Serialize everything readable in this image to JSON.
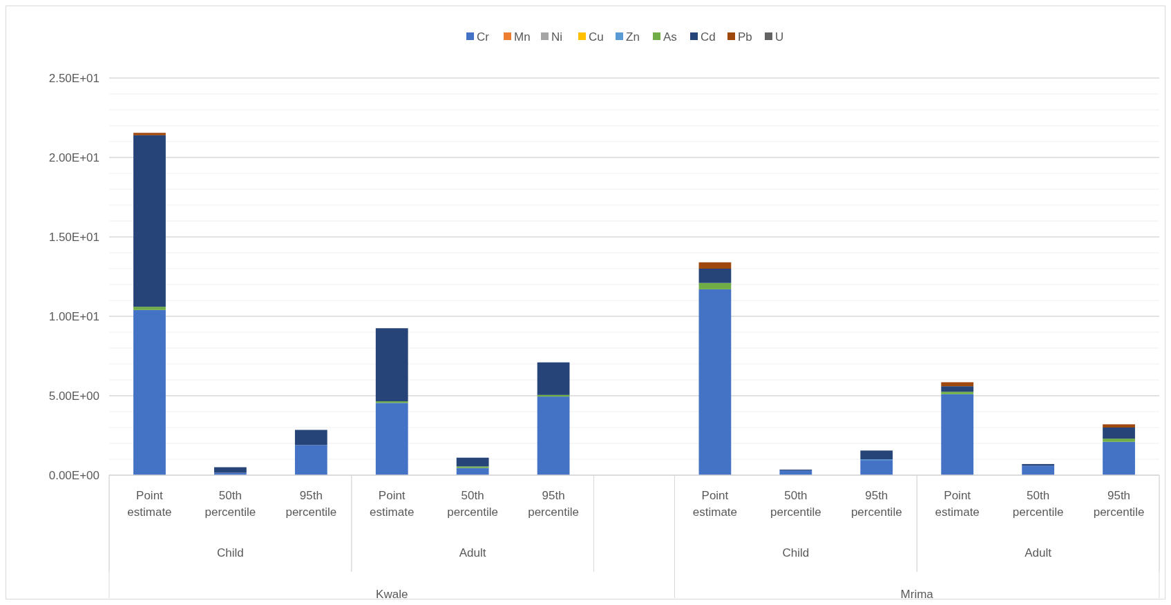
{
  "chart_data": {
    "type": "bar",
    "stacked": true,
    "legend": "top",
    "grid": "y",
    "categories": [
      "Point estimate",
      "50th percentile",
      "95th percentile",
      "Point estimate",
      "50th percentile",
      "95th percentile",
      null,
      "Point estimate",
      "50th percentile",
      "95th percentile",
      "Point estimate",
      "50th percentile",
      "95th percentile"
    ],
    "annotations": [
      "Child",
      "Adult",
      "Child",
      "Adult",
      "Kwale",
      "Mrima"
    ],
    "ylim": [
      0,
      25
    ],
    "yticks": [
      {
        "value": 0,
        "label": "0.00E+00"
      },
      {
        "value": 1,
        "label": null
      },
      {
        "value": 2,
        "label": null
      },
      {
        "value": 3,
        "label": null
      },
      {
        "value": 4,
        "label": null
      },
      {
        "value": 5,
        "label": "5.00E+00"
      },
      {
        "value": 6,
        "label": null
      },
      {
        "value": 7,
        "label": null
      },
      {
        "value": 8,
        "label": null
      },
      {
        "value": 9,
        "label": null
      },
      {
        "value": 10,
        "label": "1.00E+01"
      },
      {
        "value": 11,
        "label": null
      },
      {
        "value": 12,
        "label": null
      },
      {
        "value": 13,
        "label": null
      },
      {
        "value": 14,
        "label": null
      },
      {
        "value": 15,
        "label": "1.50E+01"
      },
      {
        "value": 16,
        "label": null
      },
      {
        "value": 17,
        "label": null
      },
      {
        "value": 18,
        "label": null
      },
      {
        "value": 19,
        "label": null
      },
      {
        "value": 20,
        "label": "2.00E+01"
      },
      {
        "value": 21,
        "label": null
      },
      {
        "value": 22,
        "label": null
      },
      {
        "value": 23,
        "label": null
      },
      {
        "value": 24,
        "label": null
      },
      {
        "value": 25,
        "label": "2.50E+01"
      }
    ],
    "series": [
      {
        "name": "Cr",
        "color": "#4472c4",
        "values": [
          10.4,
          0.15,
          1.9,
          4.55,
          0.45,
          4.95,
          null,
          11.7,
          0.3,
          0.95,
          5.1,
          0.6,
          2.1
        ]
      },
      {
        "name": "Mn",
        "color": "#ed7d31",
        "values": [
          0,
          0,
          0,
          0,
          0,
          0,
          null,
          0,
          0,
          0,
          0,
          0,
          0
        ]
      },
      {
        "name": "Ni",
        "color": "#a5a5a5",
        "values": [
          0,
          0,
          0,
          0,
          0,
          0,
          null,
          0,
          0,
          0,
          0,
          0,
          0
        ]
      },
      {
        "name": "Cu",
        "color": "#ffc000",
        "values": [
          0,
          0,
          0,
          0,
          0,
          0,
          null,
          0,
          0,
          0,
          0,
          0,
          0
        ]
      },
      {
        "name": "Zn",
        "color": "#5b9bd5",
        "values": [
          0,
          0,
          0,
          0,
          0,
          0,
          null,
          0,
          0,
          0.05,
          0,
          0,
          0
        ]
      },
      {
        "name": "As",
        "color": "#70ad47",
        "values": [
          0.2,
          0,
          0,
          0.1,
          0.1,
          0.1,
          null,
          0.4,
          0,
          0,
          0.15,
          0,
          0.2
        ]
      },
      {
        "name": "Cd",
        "color": "#264478",
        "values": [
          10.8,
          0.35,
          0.95,
          4.6,
          0.55,
          2.05,
          null,
          0.9,
          0.05,
          0.55,
          0.35,
          0.1,
          0.7
        ]
      },
      {
        "name": "Pb",
        "color": "#9e480e",
        "values": [
          0.15,
          0,
          0,
          0,
          0,
          0,
          null,
          0.4,
          0,
          0,
          0.25,
          0,
          0.2
        ]
      },
      {
        "name": "U",
        "color": "#636363",
        "values": [
          0,
          0,
          0,
          0,
          0,
          0,
          null,
          0,
          0,
          0,
          0,
          0,
          0
        ]
      }
    ]
  }
}
